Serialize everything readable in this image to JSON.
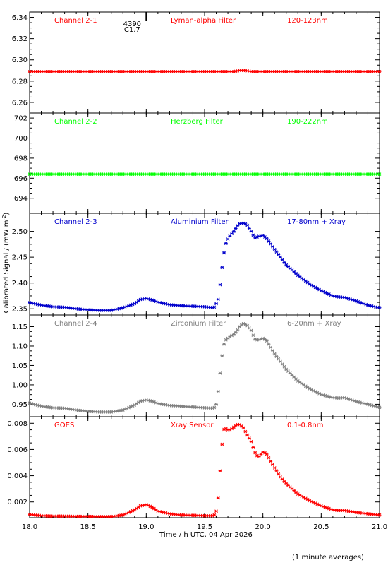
{
  "figure": {
    "ylabel": "Calibrated Signal / (mW m",
    "ylabel_sup": "-2",
    "ylabel_close": ")",
    "xlabel": "Time / h UTC, 04 Apr 2026",
    "footnote": "(1 minute averages)",
    "flare_marker": {
      "x": 19.0,
      "number": "4390",
      "class": "C1.7"
    }
  },
  "chart_data": [
    {
      "type": "scatter",
      "channel": "Channel 2-1",
      "filter": "Lyman-alpha Filter",
      "band": "120-123nm",
      "color": "#ff0000",
      "xlim": [
        18.0,
        21.0
      ],
      "ylim": [
        6.25,
        6.345
      ],
      "yticks": [
        6.26,
        6.28,
        6.3,
        6.32,
        6.34
      ],
      "ytick_labels": [
        "6.26",
        "6.28",
        "6.30",
        "6.32",
        "6.34"
      ],
      "series": [
        {
          "x": [
            18.0,
            19.6,
            19.75,
            19.8,
            19.85,
            19.9,
            21.0
          ],
          "y": [
            6.289,
            6.289,
            6.289,
            6.29,
            6.29,
            6.289,
            6.289
          ]
        }
      ]
    },
    {
      "type": "scatter",
      "channel": "Channel 2-2",
      "filter": "Herzberg Filter",
      "band": "190-222nm",
      "color": "#00ff00",
      "xlim": [
        18.0,
        21.0
      ],
      "ylim": [
        692.5,
        702.5
      ],
      "yticks": [
        694,
        696,
        698,
        700,
        702
      ],
      "ytick_labels": [
        "694",
        "696",
        "698",
        "700",
        "702"
      ],
      "series": [
        {
          "x": [
            18.0,
            21.0
          ],
          "y": [
            696.4,
            696.4
          ]
        }
      ]
    },
    {
      "type": "scatter",
      "channel": "Channel 2-3",
      "filter": "Aluminium Filter",
      "band": "17-80nm + Xray",
      "color": "#0000cc",
      "xlim": [
        18.0,
        21.0
      ],
      "ylim": [
        2.338,
        2.535
      ],
      "yticks": [
        2.35,
        2.4,
        2.45,
        2.5
      ],
      "ytick_labels": [
        "2.35",
        "2.40",
        "2.45",
        "2.50"
      ],
      "series": [
        {
          "x": [
            18.0,
            18.1,
            18.2,
            18.3,
            18.4,
            18.5,
            18.6,
            18.7,
            18.8,
            18.9,
            18.95,
            19.0,
            19.05,
            19.1,
            19.2,
            19.3,
            19.4,
            19.5,
            19.58,
            19.6,
            19.62,
            19.64,
            19.66,
            19.68,
            19.7,
            19.72,
            19.75,
            19.78,
            19.8,
            19.83,
            19.86,
            19.9,
            19.93,
            19.96,
            20.0,
            20.03,
            20.06,
            20.1,
            20.15,
            20.2,
            20.3,
            20.4,
            20.5,
            20.6,
            20.65,
            20.7,
            20.8,
            20.9,
            21.0
          ],
          "y": [
            2.362,
            2.357,
            2.354,
            2.353,
            2.35,
            2.348,
            2.347,
            2.347,
            2.352,
            2.36,
            2.368,
            2.37,
            2.367,
            2.363,
            2.358,
            2.356,
            2.355,
            2.354,
            2.352,
            2.36,
            2.37,
            2.41,
            2.45,
            2.475,
            2.485,
            2.492,
            2.5,
            2.51,
            2.515,
            2.516,
            2.514,
            2.5,
            2.487,
            2.49,
            2.492,
            2.487,
            2.478,
            2.465,
            2.45,
            2.435,
            2.415,
            2.398,
            2.385,
            2.375,
            2.373,
            2.372,
            2.365,
            2.357,
            2.352
          ]
        }
      ]
    },
    {
      "type": "scatter",
      "channel": "Channel 2-4",
      "filter": "Zirconium Filter",
      "band": "6-20nm + Xray",
      "color": "#808080",
      "xlim": [
        18.0,
        21.0
      ],
      "ylim": [
        0.918,
        1.18
      ],
      "yticks": [
        0.95,
        1.0,
        1.05,
        1.1,
        1.15
      ],
      "ytick_labels": [
        "0.95",
        "1.00",
        "1.05",
        "1.10",
        "1.15"
      ],
      "series": [
        {
          "x": [
            18.0,
            18.1,
            18.2,
            18.3,
            18.4,
            18.5,
            18.6,
            18.7,
            18.8,
            18.9,
            18.95,
            19.0,
            19.05,
            19.1,
            19.2,
            19.3,
            19.4,
            19.5,
            19.58,
            19.6,
            19.62,
            19.64,
            19.66,
            19.68,
            19.7,
            19.72,
            19.75,
            19.78,
            19.8,
            19.83,
            19.86,
            19.9,
            19.93,
            19.96,
            20.0,
            20.03,
            20.06,
            20.1,
            20.15,
            20.2,
            20.3,
            20.4,
            20.5,
            20.6,
            20.65,
            20.7,
            20.8,
            20.9,
            21.0
          ],
          "y": [
            0.953,
            0.945,
            0.941,
            0.94,
            0.935,
            0.932,
            0.93,
            0.93,
            0.935,
            0.948,
            0.958,
            0.961,
            0.958,
            0.952,
            0.947,
            0.945,
            0.943,
            0.941,
            0.94,
            0.95,
            0.99,
            1.05,
            1.1,
            1.115,
            1.12,
            1.125,
            1.13,
            1.14,
            1.15,
            1.158,
            1.155,
            1.14,
            1.118,
            1.115,
            1.12,
            1.115,
            1.1,
            1.08,
            1.06,
            1.04,
            1.01,
            0.99,
            0.975,
            0.967,
            0.966,
            0.967,
            0.957,
            0.95,
            0.942
          ]
        }
      ]
    },
    {
      "type": "scatter",
      "channel": "GOES",
      "filter": "Xray Sensor",
      "band": "0.1-0.8nm",
      "color": "#ff0000",
      "xlim": [
        18.0,
        21.0
      ],
      "ylim": [
        0.0008,
        0.0085
      ],
      "yticks": [
        0.002,
        0.004,
        0.006,
        0.008
      ],
      "ytick_labels": [
        "0.002",
        "0.004",
        "0.006",
        "0.008"
      ],
      "series": [
        {
          "x": [
            18.0,
            18.1,
            18.2,
            18.3,
            18.4,
            18.5,
            18.6,
            18.7,
            18.8,
            18.9,
            18.95,
            19.0,
            19.05,
            19.1,
            19.2,
            19.3,
            19.4,
            19.5,
            19.58,
            19.6,
            19.62,
            19.64,
            19.66,
            19.68,
            19.7,
            19.72,
            19.75,
            19.78,
            19.8,
            19.83,
            19.86,
            19.9,
            19.93,
            19.96,
            20.0,
            20.03,
            20.06,
            20.1,
            20.15,
            20.2,
            20.3,
            20.4,
            20.5,
            20.6,
            20.65,
            20.7,
            20.8,
            20.9,
            21.0
          ],
          "y": [
            0.00105,
            0.00095,
            0.00092,
            0.00092,
            0.0009,
            0.0009,
            0.00088,
            0.00088,
            0.001,
            0.0014,
            0.0017,
            0.0018,
            0.0016,
            0.0013,
            0.0011,
            0.001,
            0.00098,
            0.00095,
            0.00095,
            0.0013,
            0.0025,
            0.0053,
            0.0075,
            0.0076,
            0.0075,
            0.0075,
            0.0077,
            0.0079,
            0.0079,
            0.0077,
            0.0072,
            0.0066,
            0.0058,
            0.0054,
            0.0058,
            0.0057,
            0.0052,
            0.0046,
            0.0039,
            0.0034,
            0.0026,
            0.0021,
            0.0017,
            0.0014,
            0.00135,
            0.00135,
            0.0012,
            0.0011,
            0.001
          ]
        }
      ]
    }
  ],
  "xaxis": {
    "ticks": [
      18.0,
      18.5,
      19.0,
      19.5,
      20.0,
      20.5,
      21.0
    ],
    "tick_labels": [
      "18.0",
      "18.5",
      "19.0",
      "19.5",
      "20.0",
      "20.5",
      "21.0"
    ]
  }
}
